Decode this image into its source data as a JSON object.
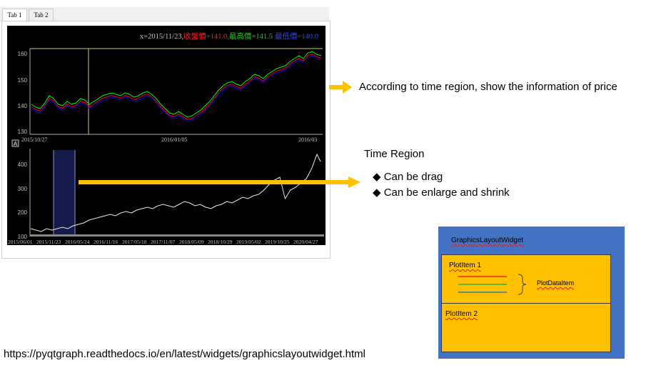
{
  "tabs": [
    {
      "label": "Tab 1",
      "active": true
    },
    {
      "label": "Tab 2",
      "active": false
    }
  ],
  "top_plot": {
    "info": {
      "x_label": "x=2015/11/23,",
      "close_label": "收盤價=141.0,",
      "high_label": "最高價=141.5",
      "low_label": "最低價=140.0"
    },
    "y_ticks": [
      "160",
      "150",
      "140",
      "130"
    ],
    "x_ticks": [
      "2015/10/27",
      "2016/01/05",
      "2016/03"
    ],
    "colors": {
      "close": "#ff0000",
      "high": "#00ff00",
      "low": "#0000ff",
      "crosshair": "#c8c87a"
    }
  },
  "bottom_plot": {
    "auto_button": "A",
    "y_ticks": [
      "400",
      "300",
      "200",
      "100"
    ],
    "x_ticks": [
      "2015/06/01",
      "2015/11/23",
      "2016/05/24",
      "2016/11/16",
      "2017/05/18",
      "2017/11/07",
      "2018/05/09",
      "2018/10/29",
      "2019/05/02",
      "2019/10/25",
      "2020/04/27"
    ],
    "region_color": "#141a4a"
  },
  "annotations": {
    "price_info": "According to time region, show the information of price",
    "time_region_title": "Time Region",
    "bullets": [
      "Can be drag",
      "Can be enlarge and shrink"
    ],
    "bullet_glyph": "◆",
    "arrow_color": "#ffc000",
    "url": "https://pyqtgraph.readthedocs.io/en/latest/widgets/graphicslayoutwidget.html"
  },
  "diagram": {
    "outer_label": "GraphicsLayoutWidget",
    "plot1_label": "PlotItem 1",
    "plot2_label": "PlotItem 2",
    "data_item_label": "PlotDataItem",
    "line_colors": [
      "#ff0000",
      "#00b050",
      "#0070c0"
    ],
    "outer_color": "#4472c4",
    "inner_color": "#ffc000"
  }
}
